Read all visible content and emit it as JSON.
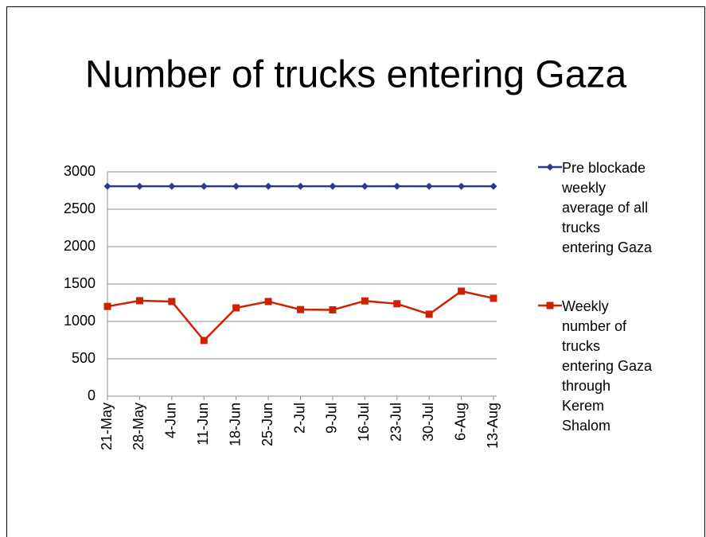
{
  "chart_data": {
    "type": "line",
    "title": "Number of trucks entering Gaza",
    "categories": [
      "21-May",
      "28-May",
      "4-Jun",
      "11-Jun",
      "18-Jun",
      "25-Jun",
      "2-Jul",
      "9-Jul",
      "16-Jul",
      "23-Jul",
      "30-Jul",
      "6-Aug",
      "13-Aug"
    ],
    "series": [
      {
        "name": "Pre blockade weekly average of all trucks entering Gaza",
        "color": "#2b3990",
        "marker": "diamond",
        "values": [
          2807,
          2807,
          2807,
          2807,
          2807,
          2807,
          2807,
          2807,
          2807,
          2807,
          2807,
          2807,
          2807
        ]
      },
      {
        "name": "Weekly number of trucks entering Gaza through Kerem Shalom",
        "color": "#cc2200",
        "marker": "square",
        "values": [
          1200,
          1277,
          1266,
          745,
          1181,
          1266,
          1158,
          1154,
          1274,
          1236,
          1096,
          1404,
          1309
        ]
      }
    ],
    "ylim": [
      0,
      3000
    ],
    "yticks": [
      0,
      500,
      1000,
      1500,
      2000,
      2500,
      3000
    ],
    "grid": true,
    "legend": "right"
  }
}
